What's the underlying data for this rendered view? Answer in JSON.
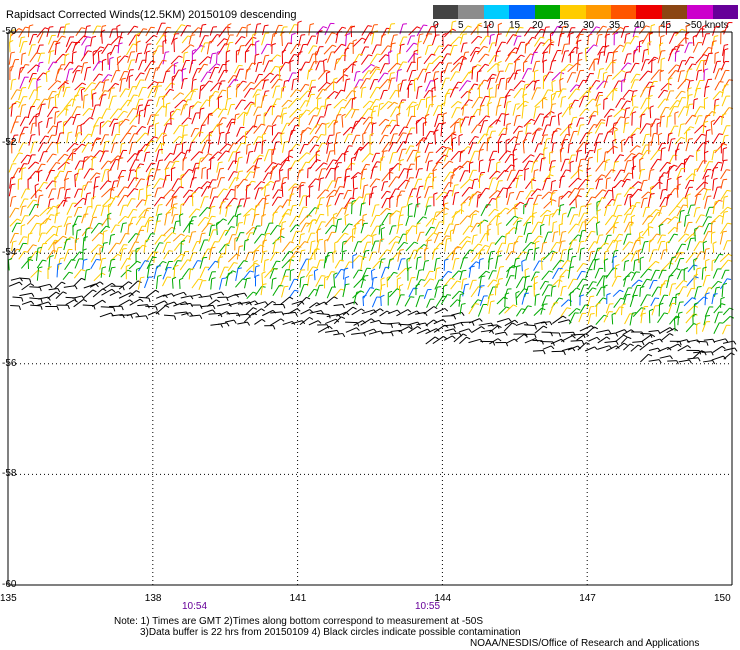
{
  "title": "Rapidsact Corrected Winds(12.5KM) 20150109 descending",
  "legend": {
    "colors": [
      "#444444",
      "#8c8c8c",
      "#00ccff",
      "#0066ff",
      "#00aa00",
      "#ffcc00",
      "#ff9900",
      "#ff5500",
      "#ee0000",
      "#8b4513",
      "#cc00cc",
      "#660099"
    ],
    "labels": [
      "0",
      "5",
      "10",
      "15",
      "20",
      "25",
      "30",
      "35",
      "40",
      "45",
      ">50 knots"
    ]
  },
  "axes": {
    "lat_labels": [
      "-50",
      "-52",
      "-54",
      "-56",
      "-58",
      "-60"
    ],
    "lon_labels": [
      "135",
      "138",
      "141",
      "144",
      "147",
      "150"
    ],
    "lat_range": [
      -60,
      -50
    ],
    "lon_range": [
      135,
      150
    ]
  },
  "times": [
    "10:54",
    "10:55"
  ],
  "notes": [
    "Note: 1) Times are GMT 2)Times along bottom correspond to measurement at -50S",
    "3)Data buffer is 22 hrs from 20150109 4) Black circles indicate possible contamination"
  ],
  "credit": "NOAA/NESDIS/Office of Research and Applications",
  "colors": {
    "grid": "#000000",
    "time_text": "#660099",
    "contaminated": "#000000"
  }
}
